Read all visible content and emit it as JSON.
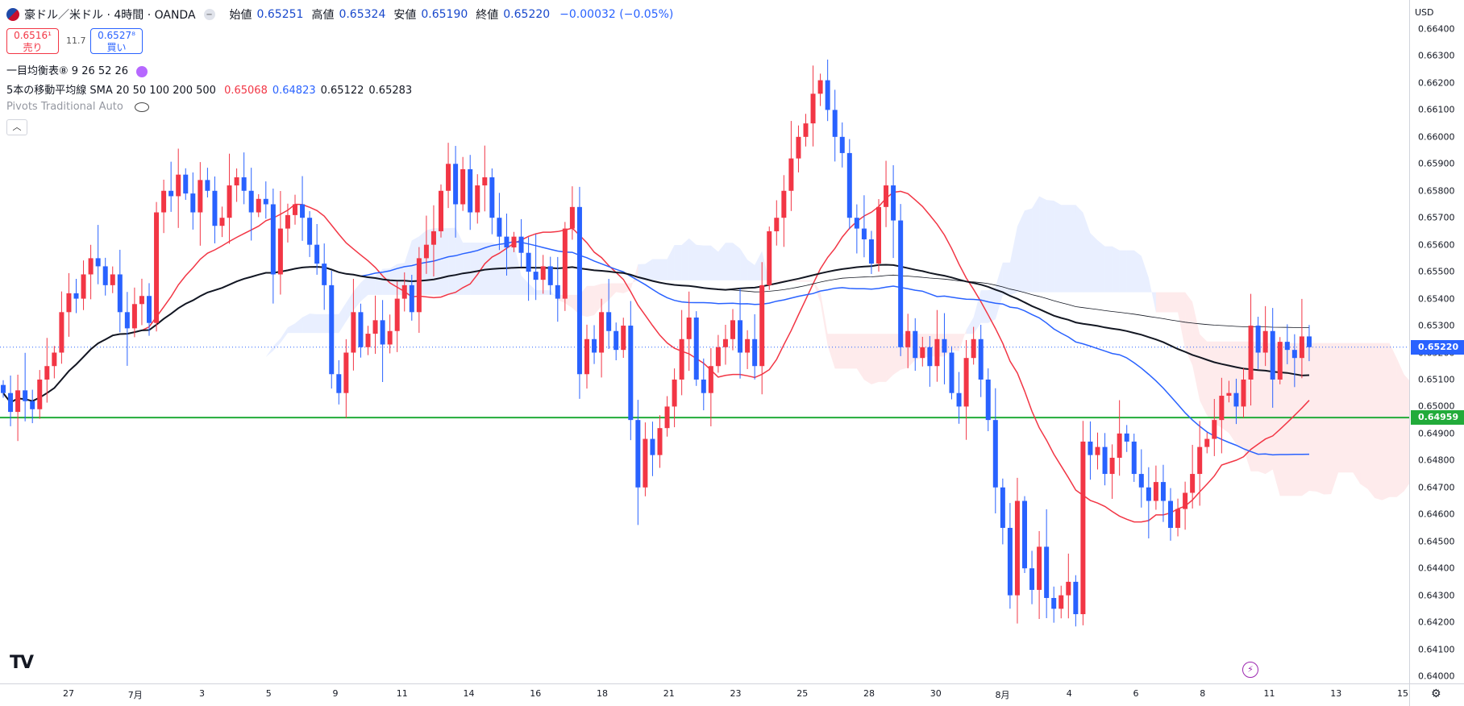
{
  "header": {
    "symbol": "豪ドル／米ドル · 4時間 · OANDA",
    "open_label": "始値",
    "open": "0.65251",
    "high_label": "高値",
    "high": "0.65324",
    "low_label": "安値",
    "low": "0.65190",
    "close_label": "終値",
    "close": "0.65220",
    "change": "−0.00032 (−0.05%)"
  },
  "trade": {
    "sell_price": "0.6516¹",
    "sell_label": "売り",
    "spread": "11.7",
    "buy_price": "0.6527⁸",
    "buy_label": "買い"
  },
  "indicators": {
    "ichimoku": "一目均衡表⑧ 9 26 52 26",
    "sma_label": "5本の移動平均線 SMA 20 50 100 200 500",
    "sma_values": [
      "0.65068",
      "0.64823",
      "0.65122",
      "0.65283"
    ],
    "sma_value_colors": [
      "#f23645",
      "#2962ff",
      "#131722",
      "#131722"
    ],
    "pivots": "Pivots Traditional Auto"
  },
  "currency": "USD",
  "price_tags": {
    "current": "0.65220",
    "current_color": "#2962ff",
    "level": "0.64959",
    "level_color": "#22ab3a"
  },
  "icons": [
    "flag-icon",
    "refresh-icon",
    "eye-off-icon",
    "collapse-icon",
    "tradingview-logo",
    "lightning-icon",
    "gear-icon"
  ],
  "chart_data": {
    "type": "candlestick",
    "title": "豪ドル／米ドル · 4時間 · OANDA",
    "ylim": [
      0.64,
      0.664
    ],
    "y_ticks": [
      "0.64000",
      "0.64100",
      "0.64200",
      "0.64300",
      "0.64400",
      "0.64500",
      "0.64600",
      "0.64700",
      "0.64800",
      "0.64900",
      "0.65000",
      "0.65100",
      "0.65200",
      "0.65300",
      "0.65400",
      "0.65500",
      "0.65600",
      "0.65700",
      "0.65800",
      "0.65900",
      "0.66000",
      "0.66100",
      "0.66200",
      "0.66300",
      "0.66400"
    ],
    "x_ticks": [
      "27",
      "7月",
      "3",
      "5",
      "9",
      "11",
      "14",
      "16",
      "18",
      "21",
      "23",
      "25",
      "28",
      "30",
      "8月",
      "4",
      "6",
      "8",
      "11",
      "13",
      "15"
    ],
    "horizontal_level": 0.64959,
    "last_price": 0.6522,
    "grid": false,
    "up_color": "#f23645",
    "down_color": "#2962ff",
    "closes": [
      0.6505,
      0.6498,
      0.6506,
      0.6502,
      0.6499,
      0.651,
      0.6515,
      0.652,
      0.6535,
      0.6542,
      0.654,
      0.6549,
      0.6555,
      0.6552,
      0.6545,
      0.6549,
      0.6535,
      0.6529,
      0.6538,
      0.6541,
      0.6531,
      0.6572,
      0.658,
      0.6578,
      0.6586,
      0.6579,
      0.6572,
      0.6584,
      0.658,
      0.6567,
      0.657,
      0.6582,
      0.6585,
      0.658,
      0.6572,
      0.6577,
      0.6575,
      0.6549,
      0.6566,
      0.6571,
      0.6575,
      0.657,
      0.656,
      0.6553,
      0.6545,
      0.6512,
      0.6505,
      0.652,
      0.6535,
      0.6522,
      0.6527,
      0.6532,
      0.6523,
      0.6528,
      0.654,
      0.6545,
      0.6535,
      0.6555,
      0.656,
      0.6565,
      0.658,
      0.659,
      0.6575,
      0.6588,
      0.6572,
      0.6582,
      0.6585,
      0.657,
      0.6563,
      0.6559,
      0.6563,
      0.6557,
      0.655,
      0.6547,
      0.6552,
      0.6545,
      0.654,
      0.6566,
      0.6574,
      0.6512,
      0.6525,
      0.652,
      0.6535,
      0.6528,
      0.6521,
      0.653,
      0.6495,
      0.647,
      0.6488,
      0.6482,
      0.6492,
      0.65,
      0.651,
      0.6525,
      0.6533,
      0.651,
      0.6505,
      0.6515,
      0.6522,
      0.6525,
      0.6532,
      0.652,
      0.6525,
      0.6515,
      0.6545,
      0.6565,
      0.657,
      0.658,
      0.6592,
      0.66,
      0.6605,
      0.6616,
      0.6621,
      0.661,
      0.66,
      0.6594,
      0.657,
      0.6566,
      0.6562,
      0.6553,
      0.6574,
      0.6582,
      0.6569,
      0.6522,
      0.6528,
      0.6518,
      0.6522,
      0.6515,
      0.6525,
      0.652,
      0.6505,
      0.65,
      0.6518,
      0.6525,
      0.651,
      0.6495,
      0.647,
      0.6455,
      0.643,
      0.6465,
      0.644,
      0.6432,
      0.6448,
      0.6429,
      0.6425,
      0.643,
      0.6435,
      0.6423,
      0.6487,
      0.6482,
      0.6485,
      0.6475,
      0.6481,
      0.649,
      0.6487,
      0.6475,
      0.647,
      0.6465,
      0.6472,
      0.6465,
      0.6455,
      0.6462,
      0.6468,
      0.6475,
      0.6485,
      0.6488,
      0.6495,
      0.6504,
      0.6505,
      0.65,
      0.651,
      0.653,
      0.652,
      0.6528,
      0.651,
      0.6524,
      0.6521,
      0.6518,
      0.6526,
      0.6522
    ]
  }
}
